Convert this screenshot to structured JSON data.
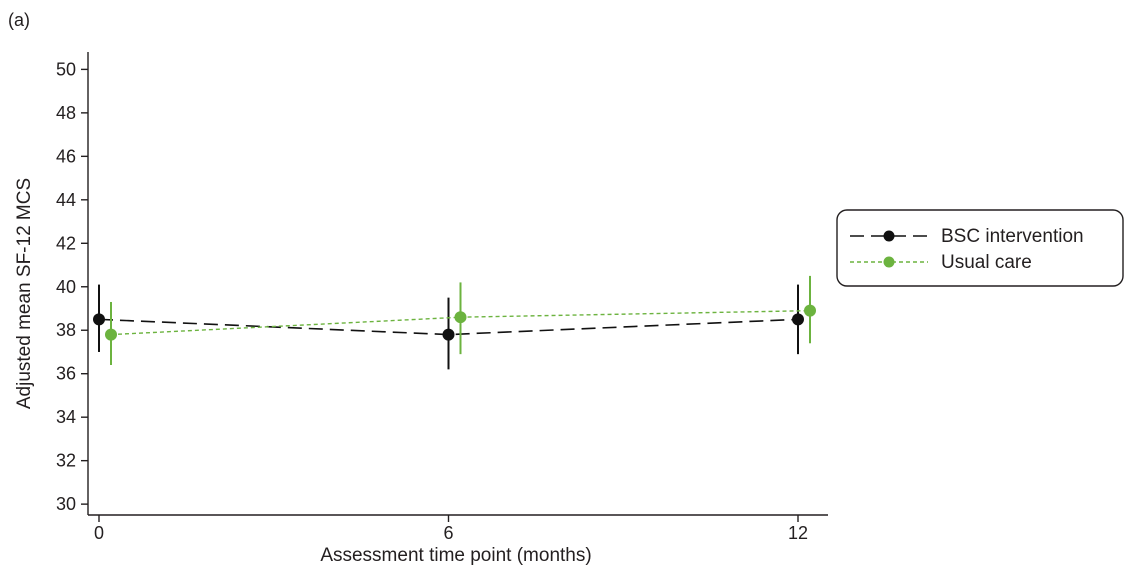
{
  "panel_label": "(a)",
  "colors": {
    "axis": "#231f20",
    "bsc": "#111111",
    "usual": "#6cb33f"
  },
  "chart_data": {
    "type": "line",
    "title": "",
    "xlabel": "Assessment time point (months)",
    "ylabel": "Adjusted mean SF-12 MCS",
    "x": [
      0,
      6,
      12
    ],
    "xticks": [
      "0",
      "6",
      "12"
    ],
    "yticks": [
      "30",
      "32",
      "34",
      "36",
      "38",
      "40",
      "42",
      "44",
      "46",
      "48",
      "50"
    ],
    "ylim": [
      29.5,
      50.8
    ],
    "grid": false,
    "legend_position": "right",
    "series": [
      {
        "name": "BSC intervention",
        "values": [
          38.5,
          37.8,
          38.5
        ],
        "lower": [
          37.0,
          36.2,
          36.9
        ],
        "upper": [
          40.1,
          39.5,
          40.1
        ]
      },
      {
        "name": "Usual care",
        "values": [
          37.8,
          38.6,
          38.9
        ],
        "lower": [
          36.4,
          36.9,
          37.4
        ],
        "upper": [
          39.3,
          40.2,
          40.5
        ]
      }
    ]
  }
}
